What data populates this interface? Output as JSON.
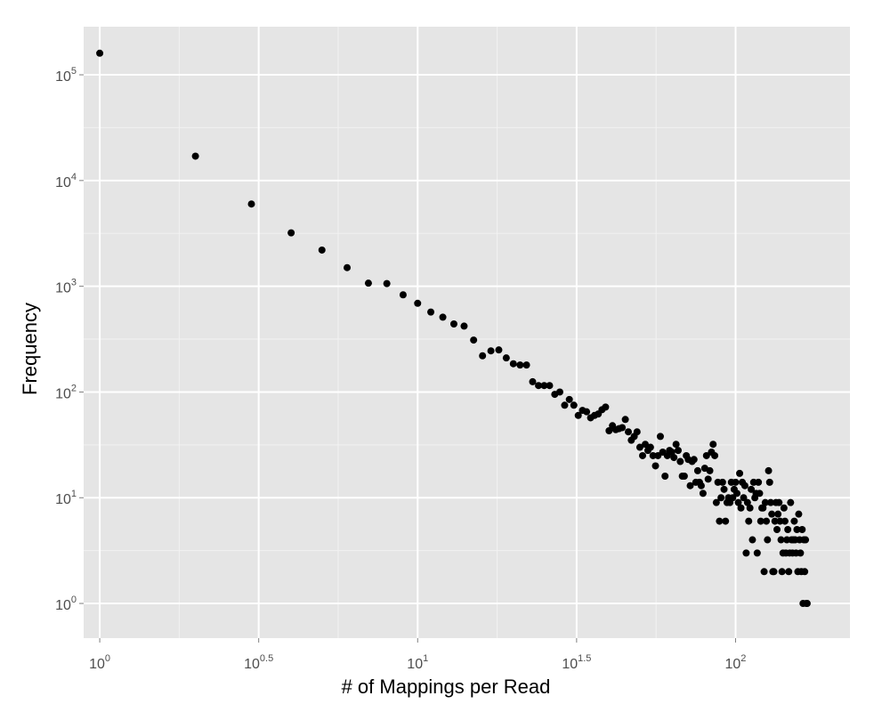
{
  "colors": {
    "panel_background": "#e5e5e5",
    "grid_major": "#ffffff",
    "grid_minor": "#f2f2f2",
    "point": "#000000",
    "tick_text": "#4d4d4d",
    "axis_title_text": "#000000"
  },
  "chart_data": {
    "type": "scatter",
    "title": "",
    "xlabel": "# of Mappings per Read",
    "ylabel": "Frequency",
    "x_scale": "log10",
    "y_scale": "log10",
    "xlim": [
      0.89,
      229
    ],
    "ylim": [
      0.47,
      285000
    ],
    "grid": true,
    "legend": "none",
    "x_ticks": [
      {
        "value": 1,
        "base": "10",
        "exp": "0"
      },
      {
        "value": 3.1623,
        "base": "10",
        "exp": "0.5"
      },
      {
        "value": 10,
        "base": "10",
        "exp": "1"
      },
      {
        "value": 31.623,
        "base": "10",
        "exp": "1.5"
      },
      {
        "value": 100,
        "base": "10",
        "exp": "2"
      }
    ],
    "y_ticks": [
      {
        "value": 1,
        "base": "10",
        "exp": "0"
      },
      {
        "value": 10,
        "base": "10",
        "exp": "1"
      },
      {
        "value": 100,
        "base": "10",
        "exp": "2"
      },
      {
        "value": 1000,
        "base": "10",
        "exp": "3"
      },
      {
        "value": 10000,
        "base": "10",
        "exp": "4"
      },
      {
        "value": 100000,
        "base": "10",
        "exp": "5"
      }
    ],
    "points": [
      [
        1,
        160000
      ],
      [
        2,
        17000
      ],
      [
        3,
        6000
      ],
      [
        4,
        3200
      ],
      [
        5,
        2200
      ],
      [
        6,
        1500
      ],
      [
        7,
        1070
      ],
      [
        8,
        1060
      ],
      [
        9,
        830
      ],
      [
        10,
        690
      ],
      [
        11,
        570
      ],
      [
        12,
        510
      ],
      [
        13,
        440
      ],
      [
        14,
        420
      ],
      [
        15,
        310
      ],
      [
        16,
        220
      ],
      [
        17,
        245
      ],
      [
        18,
        250
      ],
      [
        19,
        210
      ],
      [
        20,
        185
      ],
      [
        21,
        180
      ],
      [
        22,
        180
      ],
      [
        23,
        125
      ],
      [
        24,
        115
      ],
      [
        25,
        115
      ],
      [
        26,
        115
      ],
      [
        27,
        95
      ],
      [
        28,
        100
      ],
      [
        29,
        75
      ],
      [
        30,
        85
      ],
      [
        31,
        75
      ],
      [
        32,
        60
      ],
      [
        33,
        67
      ],
      [
        34,
        65
      ],
      [
        35,
        57
      ],
      [
        36,
        60
      ],
      [
        37,
        62
      ],
      [
        38,
        68
      ],
      [
        39,
        72
      ],
      [
        40,
        43
      ],
      [
        41,
        48
      ],
      [
        42,
        44
      ],
      [
        43,
        45
      ],
      [
        44,
        46
      ],
      [
        45,
        55
      ],
      [
        46,
        42
      ],
      [
        47,
        35
      ],
      [
        48,
        38
      ],
      [
        49,
        42
      ],
      [
        50,
        30
      ],
      [
        51,
        25
      ],
      [
        52,
        32
      ],
      [
        53,
        28
      ],
      [
        54,
        30
      ],
      [
        55,
        25
      ],
      [
        56,
        20
      ],
      [
        57,
        25
      ],
      [
        58,
        38
      ],
      [
        59,
        27
      ],
      [
        60,
        16
      ],
      [
        61,
        25
      ],
      [
        62,
        28
      ],
      [
        63,
        27
      ],
      [
        64,
        24
      ],
      [
        65,
        32
      ],
      [
        66,
        28
      ],
      [
        67,
        22
      ],
      [
        68,
        16
      ],
      [
        69,
        16
      ],
      [
        70,
        25
      ],
      [
        71,
        23
      ],
      [
        72,
        13
      ],
      [
        73,
        22
      ],
      [
        74,
        23
      ],
      [
        75,
        14
      ],
      [
        76,
        18
      ],
      [
        77,
        14
      ],
      [
        78,
        13
      ],
      [
        79,
        11
      ],
      [
        80,
        19
      ],
      [
        81,
        25
      ],
      [
        82,
        15
      ],
      [
        83,
        18
      ],
      [
        84,
        27
      ],
      [
        85,
        32
      ],
      [
        86,
        25
      ],
      [
        87,
        9
      ],
      [
        88,
        14
      ],
      [
        89,
        6
      ],
      [
        90,
        10
      ],
      [
        91,
        14
      ],
      [
        92,
        12
      ],
      [
        93,
        6
      ],
      [
        94,
        9
      ],
      [
        95,
        10
      ],
      [
        96,
        9
      ],
      [
        97,
        14
      ],
      [
        98,
        10
      ],
      [
        99,
        12
      ],
      [
        100,
        14
      ],
      [
        101,
        11
      ],
      [
        102,
        9
      ],
      [
        103,
        17
      ],
      [
        104,
        8
      ],
      [
        105,
        14
      ],
      [
        106,
        10
      ],
      [
        107,
        13
      ],
      [
        108,
        3
      ],
      [
        109,
        9
      ],
      [
        110,
        6
      ],
      [
        111,
        8
      ],
      [
        112,
        12
      ],
      [
        113,
        4
      ],
      [
        114,
        14
      ],
      [
        115,
        10
      ],
      [
        116,
        11
      ],
      [
        117,
        3
      ],
      [
        118,
        14
      ],
      [
        119,
        11
      ],
      [
        120,
        6
      ],
      [
        121,
        8
      ],
      [
        122,
        8
      ],
      [
        123,
        2
      ],
      [
        124,
        9
      ],
      [
        125,
        6
      ],
      [
        126,
        4
      ],
      [
        127,
        18
      ],
      [
        128,
        14
      ],
      [
        129,
        9
      ],
      [
        130,
        7
      ],
      [
        131,
        2
      ],
      [
        132,
        2
      ],
      [
        133,
        6
      ],
      [
        134,
        9
      ],
      [
        135,
        5
      ],
      [
        136,
        7
      ],
      [
        137,
        9
      ],
      [
        138,
        6
      ],
      [
        139,
        4
      ],
      [
        140,
        2
      ],
      [
        141,
        3
      ],
      [
        142,
        8
      ],
      [
        143,
        6
      ],
      [
        144,
        3
      ],
      [
        145,
        4
      ],
      [
        146,
        5
      ],
      [
        147,
        2
      ],
      [
        148,
        3
      ],
      [
        149,
        9
      ],
      [
        150,
        4
      ],
      [
        151,
        3
      ],
      [
        152,
        4
      ],
      [
        153,
        6
      ],
      [
        154,
        4
      ],
      [
        155,
        3
      ],
      [
        156,
        5
      ],
      [
        157,
        2
      ],
      [
        158,
        7
      ],
      [
        159,
        4
      ],
      [
        160,
        3
      ],
      [
        161,
        2
      ],
      [
        162,
        5
      ],
      [
        163,
        1
      ],
      [
        164,
        4
      ],
      [
        165,
        2
      ],
      [
        166,
        4
      ],
      [
        167,
        1
      ],
      [
        168,
        1
      ]
    ]
  }
}
